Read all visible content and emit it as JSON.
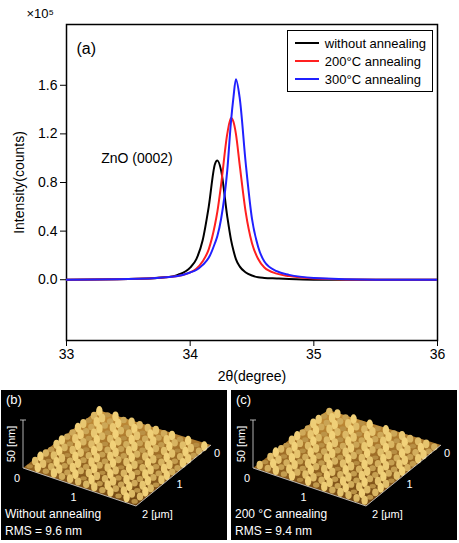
{
  "chart_data": {
    "type": "line",
    "panel_label": "(a)",
    "y_multiplier": "×10⁵",
    "x_label": "2θ(degree)",
    "y_label": "Intensity(counts)",
    "xlim": [
      33,
      36
    ],
    "xticks": [
      33,
      34,
      35,
      36
    ],
    "ylim": [
      -0.5,
      2.1
    ],
    "yticks": [
      {
        "value": 0,
        "label": "0.0"
      },
      0.4,
      0.8,
      1.2,
      1.6
    ],
    "legend": "top-right",
    "annotations": [
      {
        "text": "ZnO (0002)",
        "x": 33.57,
        "y": 1.0
      }
    ],
    "x": [
      33.0,
      33.5,
      33.8,
      33.9,
      34.0,
      34.05,
      34.1,
      34.15,
      34.2,
      34.22,
      34.25,
      34.3,
      34.33,
      34.35,
      34.37,
      34.4,
      34.45,
      34.5,
      34.55,
      34.6,
      34.7,
      34.8,
      35.0,
      35.5,
      36.0
    ],
    "series": [
      {
        "name": "without annealing",
        "color": "#000000",
        "values": [
          0,
          0.005,
          0.02,
          0.04,
          0.1,
          0.17,
          0.32,
          0.6,
          0.95,
          0.98,
          0.9,
          0.52,
          0.33,
          0.24,
          0.17,
          0.11,
          0.06,
          0.035,
          0.02,
          0.015,
          0.01,
          0.005,
          0,
          0,
          0
        ]
      },
      {
        "name": "200°C annealing",
        "color": "#ff2020",
        "values": [
          0,
          0.005,
          0.02,
          0.03,
          0.06,
          0.09,
          0.15,
          0.25,
          0.45,
          0.56,
          0.78,
          1.2,
          1.33,
          1.3,
          1.2,
          0.95,
          0.55,
          0.3,
          0.17,
          0.1,
          0.05,
          0.03,
          0.01,
          0,
          0
        ]
      },
      {
        "name": "300°C annealing",
        "color": "#2020ff",
        "values": [
          0,
          0.005,
          0.02,
          0.03,
          0.06,
          0.08,
          0.12,
          0.18,
          0.3,
          0.36,
          0.5,
          0.9,
          1.3,
          1.5,
          1.65,
          1.5,
          0.95,
          0.5,
          0.27,
          0.15,
          0.07,
          0.04,
          0.015,
          0,
          0
        ]
      }
    ]
  },
  "images": [
    {
      "label": "(b)",
      "z_axis": "50 [nm]",
      "front_ticks": [
        "0",
        "1"
      ],
      "side_ticks": [
        "0",
        "1",
        "2 [μm]"
      ],
      "caption": "Without annealing",
      "rms_text": "RMS = 9.6 nm"
    },
    {
      "label": "(c)",
      "z_axis": "50 [nm]",
      "front_ticks": [
        "0",
        "1"
      ],
      "side_ticks": [
        "0",
        "1",
        "2 [μm]"
      ],
      "caption": "200 °C annealing",
      "rms_text": "RMS = 9.4 nm"
    }
  ]
}
